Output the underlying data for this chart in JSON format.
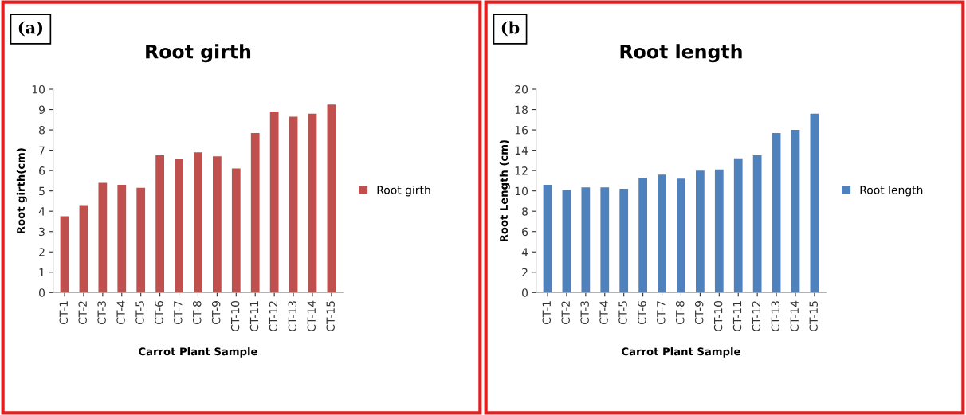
{
  "chart_data": [
    {
      "type": "bar",
      "title": "Root girth",
      "xlabel": "Carrot Plant Sample",
      "ylabel": "Root girth(cm)",
      "annotations": [
        "(a)"
      ],
      "categories": [
        "CT-1",
        "CT-2",
        "CT-3",
        "CT-4",
        "CT-5",
        "CT-6",
        "CT-7",
        "CT-8",
        "CT-9",
        "CT-10",
        "CT-11",
        "CT-12",
        "CT-13",
        "CT-14",
        "CT-15"
      ],
      "series": [
        {
          "name": "Root girth",
          "color": "#c0504d",
          "values": [
            3.75,
            4.3,
            5.4,
            5.3,
            5.15,
            6.75,
            6.55,
            6.9,
            6.7,
            6.1,
            7.85,
            8.9,
            8.65,
            8.8,
            9.25
          ]
        }
      ],
      "ylim": [
        0,
        10
      ],
      "yticks": [
        0,
        1,
        2,
        3,
        4,
        5,
        6,
        7,
        8,
        9,
        10
      ],
      "grid": false,
      "legend": "right"
    },
    {
      "type": "bar",
      "title": "Root length",
      "xlabel": "Carrot Plant Sample",
      "ylabel": "Root Length (cm)",
      "annotations": [
        "(b"
      ],
      "categories": [
        "CT-1",
        "CT-2",
        "CT-3",
        "CT-4",
        "CT-5",
        "CT-6",
        "CT-7",
        "CT-8",
        "CT-9",
        "CT-10",
        "CT-11",
        "CT-12",
        "CT-13",
        "CT-14",
        "CT-15"
      ],
      "series": [
        {
          "name": "Root length",
          "color": "#4f81bd",
          "values": [
            10.6,
            10.1,
            10.35,
            10.35,
            10.2,
            11.3,
            11.6,
            11.2,
            12.0,
            12.1,
            13.2,
            13.5,
            15.7,
            16.0,
            17.6
          ]
        }
      ],
      "ylim": [
        0,
        20
      ],
      "yticks": [
        0,
        2,
        4,
        6,
        8,
        10,
        12,
        14,
        16,
        18,
        20
      ],
      "grid": false,
      "legend": "right"
    }
  ]
}
